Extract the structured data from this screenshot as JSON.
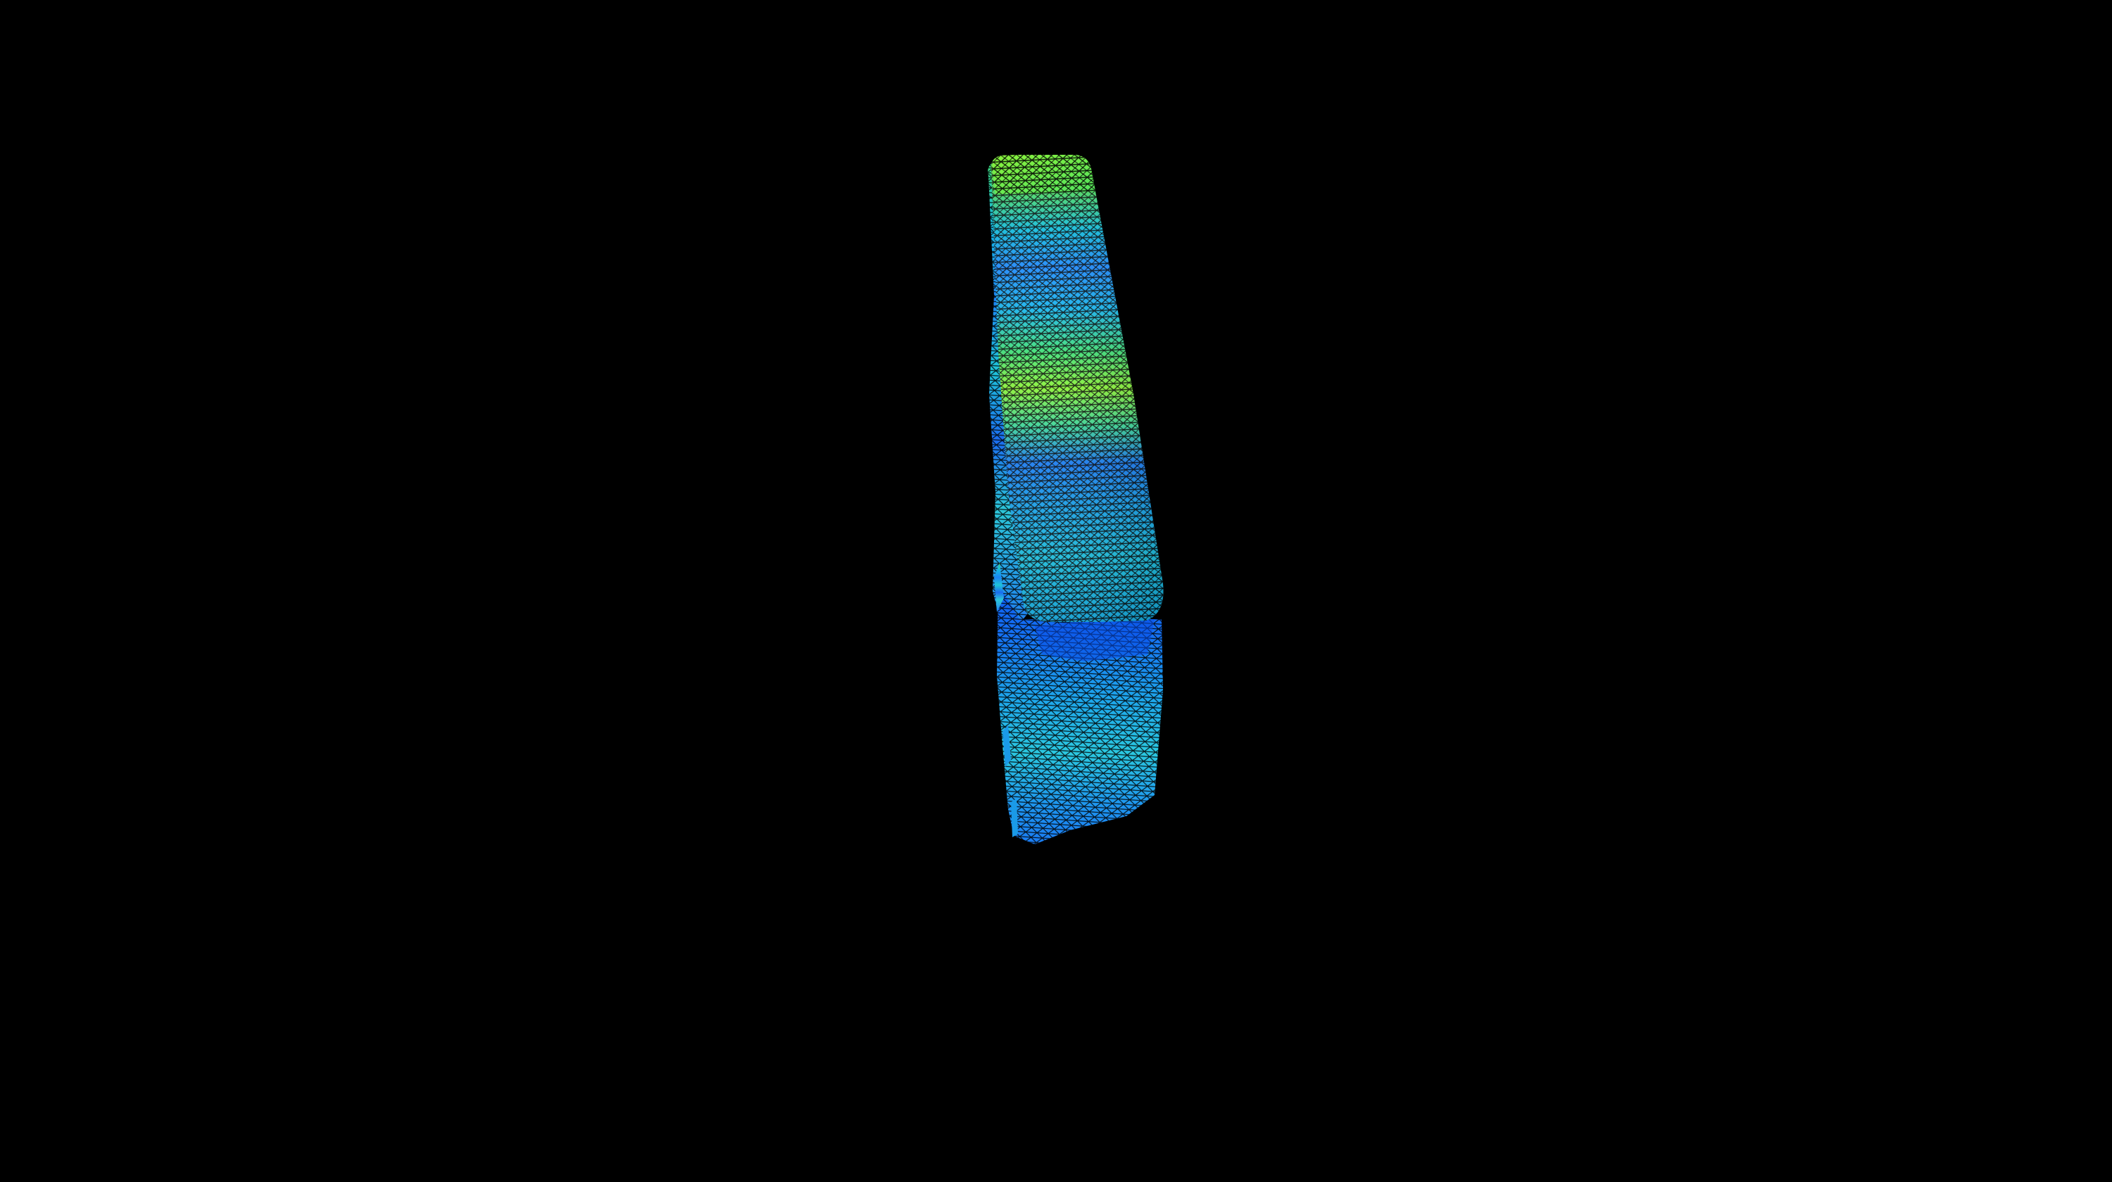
{
  "scene": {
    "background_color": "#000000",
    "object": "triangulated-surface-mesh",
    "render_style": "wireframe-over-colormap",
    "wireframe_color": "#000000",
    "colormap": [
      "#0a5cff",
      "#1e88ff",
      "#12c3e6",
      "#2ee0a8",
      "#5cf04a",
      "#8cf53a"
    ]
  }
}
